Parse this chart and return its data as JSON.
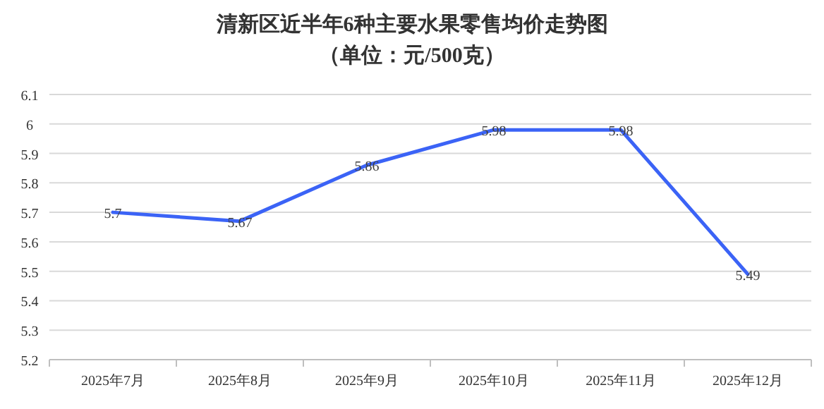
{
  "chart_data": {
    "type": "line",
    "title": "清新区近半年6种主要水果零售均价走势图",
    "subtitle": "（单位：元/500克）",
    "categories": [
      "2025年7月",
      "2025年8月",
      "2025年9月",
      "2025年10月",
      "2025年11月",
      "2025年12月"
    ],
    "series": [
      {
        "color": "#3b63f6",
        "values": [
          5.7,
          5.67,
          5.86,
          5.98,
          5.98,
          5.49
        ]
      }
    ],
    "ylim": [
      5.2,
      6.1
    ],
    "yticks": [
      5.2,
      5.3,
      5.4,
      5.5,
      5.6,
      5.7,
      5.8,
      5.9,
      6,
      6.1
    ],
    "grid": "y",
    "data_labels": true
  }
}
